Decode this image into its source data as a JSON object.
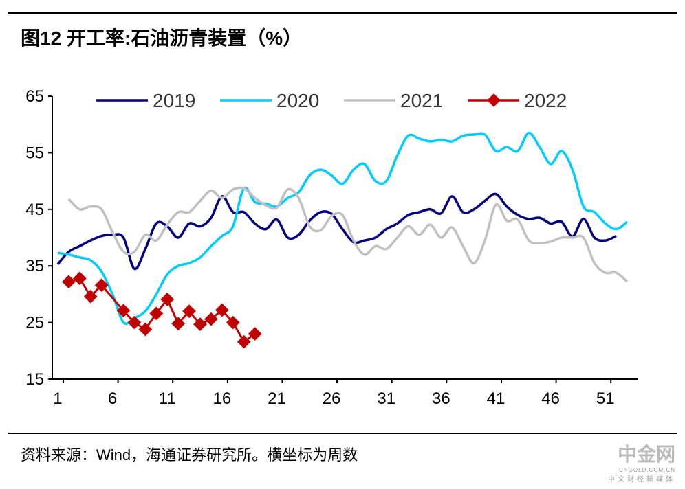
{
  "title": "图12 开工率:石油沥青装置（%）",
  "source": "资料来源：Wind，海通证券研究所。横坐标为周数",
  "watermark": {
    "name": "中金网",
    "domain": "CNGOLD.COM.CN",
    "tagline": "中文财经新媒体"
  },
  "chart_data": {
    "type": "line",
    "title": "开工率:石油沥青装置（%）",
    "xlabel": "",
    "ylabel": "",
    "ylim": [
      15,
      65
    ],
    "xlim": [
      0.5,
      54
    ],
    "yticks": [
      15,
      25,
      35,
      45,
      55,
      65
    ],
    "xticks": [
      1,
      6,
      11,
      16,
      21,
      26,
      31,
      36,
      41,
      46,
      51
    ],
    "legend": "top",
    "series": [
      {
        "name": "2019",
        "color": "#00007F",
        "x_start": 1,
        "values": [
          35.3,
          37.5,
          38.5,
          39.5,
          40.3,
          40.5,
          40,
          34.5,
          38,
          42.5,
          42,
          40,
          42.5,
          42,
          43.5,
          47.3,
          44.5,
          44.5,
          42.5,
          41.5,
          43.2,
          40,
          40.5,
          43,
          44.5,
          44.2,
          41.5,
          39.2,
          39.5,
          40,
          41.5,
          42.5,
          44,
          44.5,
          45,
          44.3,
          47.3,
          44.5,
          45,
          46.5,
          47.7,
          45.5,
          44,
          43.3,
          43.5,
          42.5,
          42.8,
          40.2,
          43.3,
          40,
          39.5,
          40.3
        ]
      },
      {
        "name": "2020",
        "color": "#00CCFF",
        "x_start": 1,
        "values": [
          37.3,
          37,
          36.5,
          36,
          34,
          30,
          25,
          25.8,
          27,
          30,
          33.5,
          35,
          35.5,
          36.5,
          38.5,
          40.3,
          42,
          48.7,
          46.3,
          46,
          45.5,
          47,
          48,
          51,
          52,
          51,
          49.5,
          52,
          53,
          50,
          50,
          54.5,
          58,
          57.5,
          57,
          57.3,
          57,
          58,
          58.2,
          58.2,
          55.3,
          56,
          55.3,
          58.5,
          56,
          53,
          55.3,
          52,
          45.5,
          44.5,
          42.5,
          41.5,
          42.8
        ]
      },
      {
        "name": "2021",
        "color": "#C0C0C0",
        "x_start": 2,
        "values": [
          46.8,
          45,
          45.5,
          45,
          41,
          37.5,
          37.5,
          40.5,
          39.5,
          42.3,
          44.5,
          44.5,
          46.5,
          48.3,
          47,
          48.5,
          48.7,
          47,
          45.7,
          45.3,
          48.5,
          47,
          42,
          41.3,
          43.8,
          44,
          39.5,
          37,
          38.5,
          38,
          40,
          42,
          40.5,
          42.3,
          40,
          41.8,
          38.5,
          35.5,
          39.5,
          45.8,
          43,
          43.2,
          39.5,
          39,
          39.3,
          40,
          40,
          40,
          35.5,
          33.8,
          33.8,
          32.2
        ]
      },
      {
        "name": "2022",
        "color": "#C00000",
        "x_start": 2,
        "marker": "diamond",
        "values": [
          32.2,
          32.8,
          29.6,
          31.6,
          null,
          27.1,
          25.0,
          23.8,
          26.6,
          29.1,
          24.8,
          27.0,
          24.7,
          25.6,
          27.2,
          25.0,
          21.6,
          23.0
        ]
      }
    ]
  }
}
